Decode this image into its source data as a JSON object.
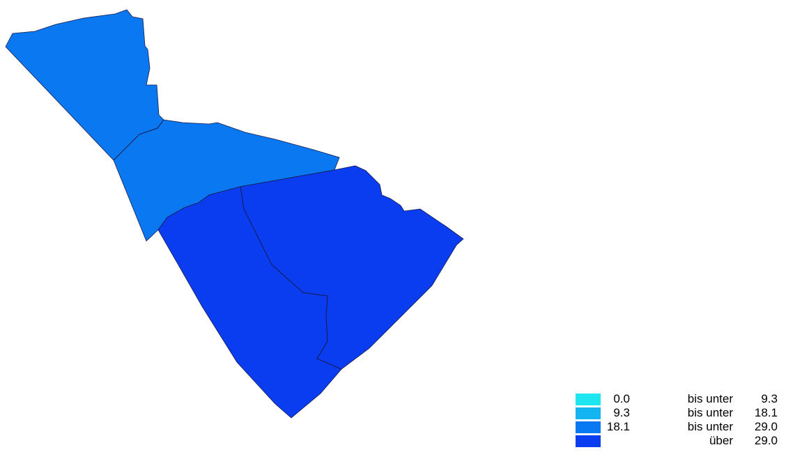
{
  "map": {
    "districts": [
      {
        "name": "district-northwest",
        "class_index": 2
      },
      {
        "name": "district-center",
        "class_index": 2
      },
      {
        "name": "district-southwest",
        "class_index": 3
      },
      {
        "name": "district-southeast",
        "class_index": 3
      }
    ]
  },
  "legend": {
    "items": [
      {
        "from": "0.0",
        "operator": "bis unter",
        "to": "9.3",
        "color": "#1ee6f0"
      },
      {
        "from": "9.3",
        "operator": "bis unter",
        "to": "18.1",
        "color": "#14b4f0"
      },
      {
        "from": "18.1",
        "operator": "bis unter",
        "to": "29.0",
        "color": "#0a78f0"
      },
      {
        "from": "",
        "operator": "über",
        "to": "29.0",
        "color": "#0a3cf0"
      }
    ]
  }
}
